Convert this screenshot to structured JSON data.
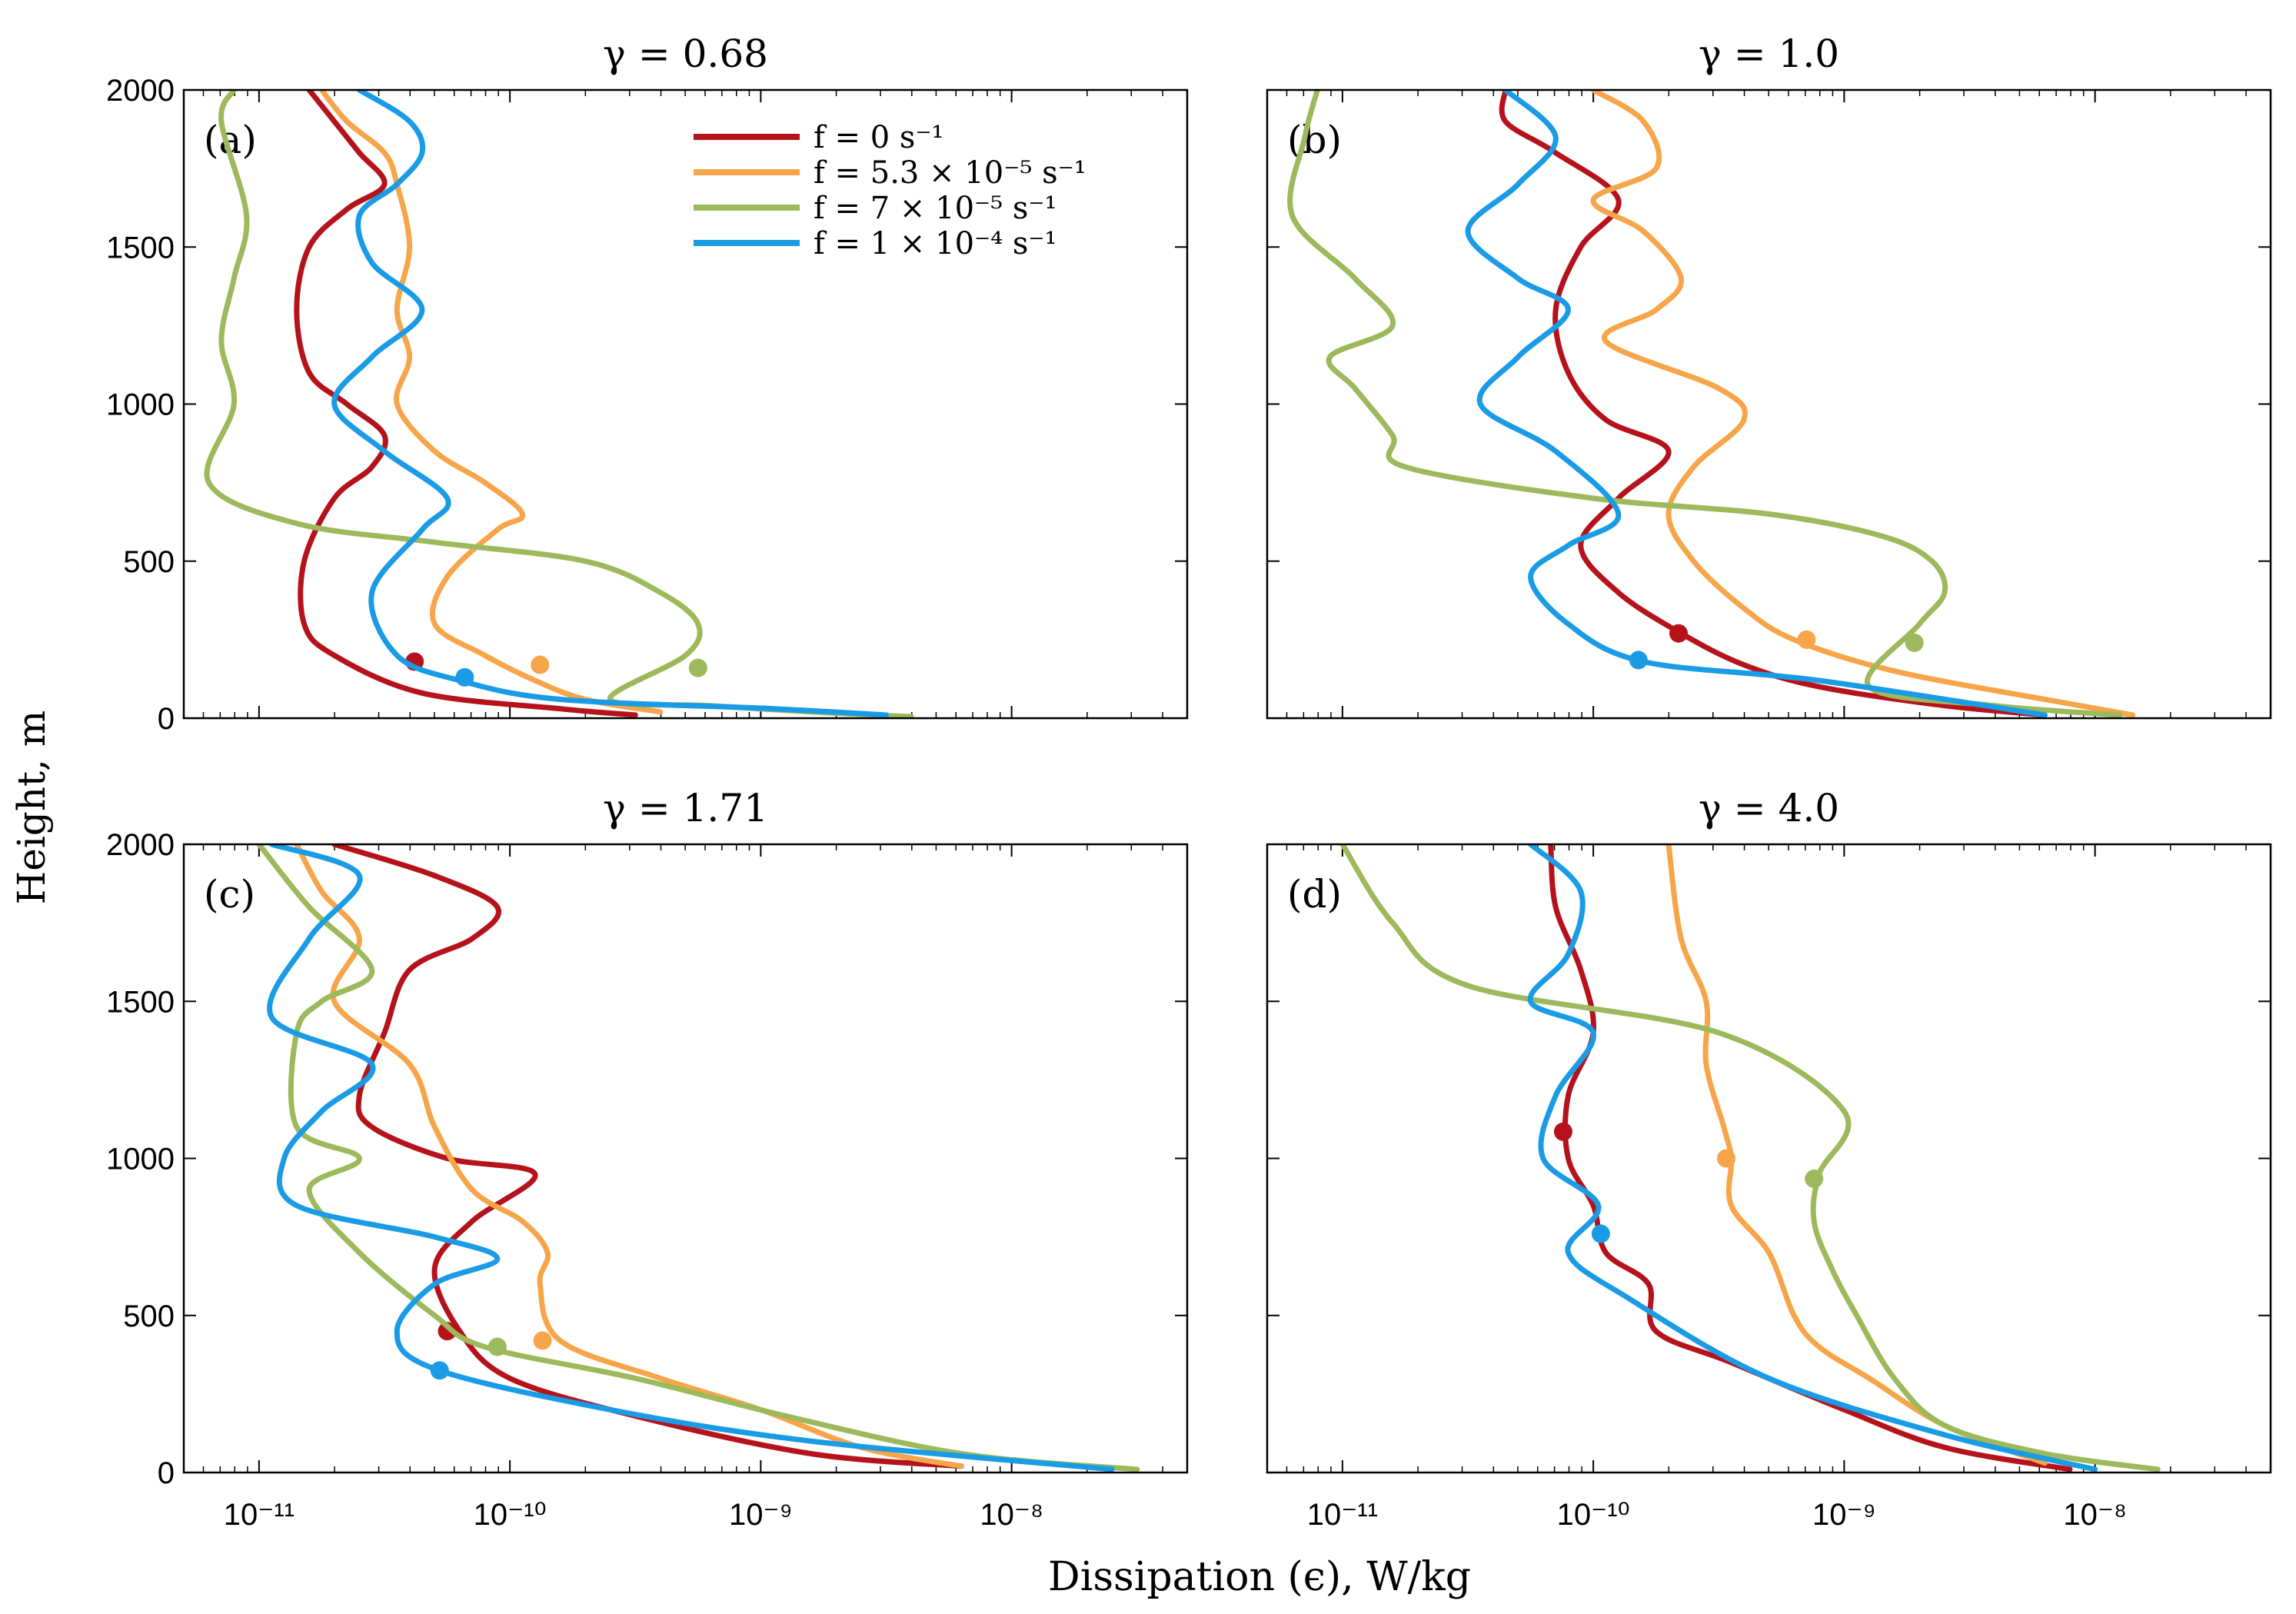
{
  "figure": {
    "ylabel": "Height, m",
    "xlabel": "Dissipation (ϵ), W/kg"
  },
  "legend": [
    {
      "label": "f = 0 s⁻¹",
      "color": "#b5121b"
    },
    {
      "label": "f = 5.3 × 10⁻⁵ s⁻¹",
      "color": "#f7a54a"
    },
    {
      "label": "f = 7 × 10⁻⁵ s⁻¹",
      "color": "#9cb95b"
    },
    {
      "label": "f = 1 × 10⁻⁴ s⁻¹",
      "color": "#1a9be6"
    }
  ],
  "chart_data": [
    {
      "type": "line",
      "panel": "(a)",
      "title": "γ = 0.68",
      "xscale": "log",
      "xlim_exp": [
        -11.3,
        -7.3
      ],
      "ylim": [
        0,
        2000
      ],
      "xticks": [
        "10⁻¹¹",
        "10⁻¹⁰",
        "10⁻⁹",
        "10⁻⁸"
      ],
      "yticks": [
        "0",
        "500",
        "1000",
        "1500",
        "2000"
      ],
      "series": [
        {
          "name": "f = 0 s⁻¹",
          "color": "#b5121b",
          "x_exp": [
            -10.8,
            -10.7,
            -10.6,
            -10.5,
            -10.65,
            -10.8,
            -10.85,
            -10.8,
            -10.65,
            -10.5,
            -10.55,
            -10.7,
            -10.82,
            -10.82,
            -10.7,
            -10.35,
            -9.8,
            -9.5
          ],
          "y": [
            2000,
            1900,
            1800,
            1700,
            1620,
            1500,
            1300,
            1100,
            1000,
            900,
            800,
            700,
            500,
            300,
            200,
            80,
            30,
            10
          ],
          "marker": {
            "x_exp": -10.38,
            "y": 180
          }
        },
        {
          "name": "f = 5.3 × 10⁻⁵ s⁻¹",
          "color": "#f7a54a",
          "x_exp": [
            -10.75,
            -10.65,
            -10.5,
            -10.45,
            -10.4,
            -10.45,
            -10.4,
            -10.45,
            -10.3,
            -10.1,
            -9.95,
            -10.05,
            -10.25,
            -10.3,
            -10.1,
            -9.9,
            -9.7,
            -9.4
          ],
          "y": [
            2000,
            1900,
            1800,
            1700,
            1500,
            1300,
            1150,
            1000,
            850,
            750,
            650,
            600,
            450,
            300,
            200,
            120,
            60,
            20
          ],
          "marker": {
            "x_exp": -9.88,
            "y": 170
          }
        },
        {
          "name": "f = 7 × 10⁻⁵ s⁻¹",
          "color": "#9cb95b",
          "x_exp": [
            -11.1,
            -11.15,
            -11.05,
            -11.1,
            -11.15,
            -11.1,
            -11.2,
            -10.85,
            -10.3,
            -9.7,
            -9.4,
            -9.25,
            -9.3,
            -9.6,
            -9.2,
            -8.8,
            -8.4
          ],
          "y": [
            2000,
            1900,
            1600,
            1400,
            1200,
            1000,
            750,
            620,
            560,
            500,
            400,
            300,
            200,
            60,
            40,
            20,
            5
          ],
          "marker": {
            "x_exp": -9.25,
            "y": 160
          }
        },
        {
          "name": "f = 1 × 10⁻⁴ s⁻¹",
          "color": "#1a9be6",
          "x_exp": [
            -10.6,
            -10.4,
            -10.35,
            -10.45,
            -10.6,
            -10.55,
            -10.35,
            -10.55,
            -10.7,
            -10.5,
            -10.25,
            -10.35,
            -10.55,
            -10.45,
            -10.2,
            -9.8,
            -8.95,
            -8.5
          ],
          "y": [
            2000,
            1900,
            1800,
            1700,
            1600,
            1450,
            1300,
            1150,
            1000,
            850,
            700,
            600,
            400,
            200,
            120,
            60,
            30,
            10
          ],
          "marker": {
            "x_exp": -10.18,
            "y": 130
          }
        }
      ]
    },
    {
      "type": "line",
      "panel": "(b)",
      "title": "γ = 1.0",
      "xscale": "log",
      "xlim_exp": [
        -11.3,
        -7.3
      ],
      "ylim": [
        0,
        2000
      ],
      "xticks": [
        "10⁻¹¹",
        "10⁻¹⁰",
        "10⁻⁹",
        "10⁻⁸"
      ],
      "yticks": [
        "0",
        "500",
        "1000",
        "1500",
        "2000"
      ],
      "series": [
        {
          "name": "f = 0 s⁻¹",
          "color": "#b5121b",
          "x_exp": [
            -10.35,
            -10.35,
            -10.15,
            -9.9,
            -10.05,
            -10.15,
            -10.1,
            -9.95,
            -9.7,
            -9.9,
            -10.05,
            -9.9,
            -9.65,
            -9.4,
            -9.1,
            -8.6,
            -8.2
          ],
          "y": [
            2000,
            1900,
            1800,
            1650,
            1500,
            1300,
            1100,
            950,
            850,
            700,
            550,
            400,
            270,
            170,
            100,
            40,
            10
          ],
          "marker": {
            "x_exp": -9.66,
            "y": 270
          }
        },
        {
          "name": "f = 5.3 × 10⁻⁵ s⁻¹",
          "color": "#f7a54a",
          "x_exp": [
            -10.0,
            -9.8,
            -9.75,
            -10.0,
            -9.8,
            -9.65,
            -9.75,
            -9.95,
            -9.5,
            -9.4,
            -9.6,
            -9.7,
            -9.6,
            -9.4,
            -9.2,
            -8.8,
            -8.2,
            -7.85
          ],
          "y": [
            2000,
            1900,
            1750,
            1650,
            1550,
            1400,
            1300,
            1200,
            1050,
            950,
            800,
            650,
            500,
            350,
            250,
            150,
            60,
            10
          ],
          "marker": {
            "x_exp": -9.15,
            "y": 250
          }
        },
        {
          "name": "f = 7 × 10⁻⁵ s⁻¹",
          "color": "#9cb95b",
          "x_exp": [
            -11.1,
            -11.15,
            -11.2,
            -10.95,
            -10.8,
            -11.05,
            -10.95,
            -10.8,
            -10.75,
            -10.0,
            -9.3,
            -8.85,
            -8.65,
            -8.6,
            -8.7,
            -8.9,
            -8.4,
            -7.9
          ],
          "y": [
            2000,
            1850,
            1600,
            1400,
            1250,
            1150,
            1050,
            900,
            800,
            700,
            650,
            580,
            500,
            400,
            300,
            100,
            40,
            10
          ],
          "marker": {
            "x_exp": -8.72,
            "y": 240
          }
        },
        {
          "name": "f = 1 × 10⁻⁴ s⁻¹",
          "color": "#1a9be6",
          "x_exp": [
            -10.35,
            -10.15,
            -10.3,
            -10.5,
            -10.3,
            -10.1,
            -10.3,
            -10.45,
            -10.15,
            -9.9,
            -10.1,
            -10.25,
            -10.1,
            -9.8,
            -9.1,
            -8.2
          ],
          "y": [
            2000,
            1850,
            1700,
            1550,
            1400,
            1300,
            1150,
            1000,
            850,
            650,
            550,
            450,
            300,
            180,
            120,
            10
          ],
          "marker": {
            "x_exp": -9.82,
            "y": 185
          }
        }
      ]
    },
    {
      "type": "line",
      "panel": "(c)",
      "title": "γ = 1.71",
      "xscale": "log",
      "xlim_exp": [
        -11.3,
        -7.3
      ],
      "ylim": [
        0,
        2000
      ],
      "xticks": [
        "10⁻¹¹",
        "10⁻¹⁰",
        "10⁻⁹",
        "10⁻⁸"
      ],
      "yticks": [
        "0",
        "500",
        "1000",
        "1500",
        "2000"
      ],
      "series": [
        {
          "name": "f = 0 s⁻¹",
          "color": "#b5121b",
          "x_exp": [
            -10.7,
            -10.3,
            -10.05,
            -10.15,
            -10.4,
            -10.5,
            -10.6,
            -10.55,
            -10.25,
            -9.9,
            -10.15,
            -10.3,
            -10.2,
            -10.0,
            -9.5,
            -8.8,
            -8.2
          ],
          "y": [
            2000,
            1900,
            1800,
            1700,
            1600,
            1400,
            1200,
            1100,
            1000,
            950,
            800,
            650,
            450,
            300,
            180,
            60,
            20
          ],
          "marker": {
            "x_exp": -10.25,
            "y": 450
          }
        },
        {
          "name": "f = 5.3 × 10⁻⁵ s⁻¹",
          "color": "#f7a54a",
          "x_exp": [
            -10.85,
            -10.75,
            -10.6,
            -10.7,
            -10.4,
            -10.3,
            -10.15,
            -9.95,
            -9.85,
            -9.88,
            -9.8,
            -9.4,
            -9.0,
            -8.6,
            -8.2
          ],
          "y": [
            2000,
            1850,
            1700,
            1500,
            1300,
            1100,
            900,
            800,
            700,
            600,
            420,
            300,
            200,
            80,
            20
          ],
          "marker": {
            "x_exp": -9.87,
            "y": 420
          }
        },
        {
          "name": "f = 7 × 10⁻⁵ s⁻¹",
          "color": "#9cb95b",
          "x_exp": [
            -11.0,
            -10.8,
            -10.55,
            -10.75,
            -10.85,
            -10.85,
            -10.6,
            -10.8,
            -10.6,
            -10.3,
            -10.1,
            -9.5,
            -8.9,
            -8.2,
            -7.5
          ],
          "y": [
            2000,
            1800,
            1600,
            1500,
            1400,
            1100,
            1000,
            900,
            700,
            500,
            400,
            300,
            180,
            60,
            10
          ],
          "marker": {
            "x_exp": -10.05,
            "y": 400
          }
        },
        {
          "name": "f = 1 × 10⁻⁴ s⁻¹",
          "color": "#1a9be6",
          "x_exp": [
            -10.95,
            -10.6,
            -10.8,
            -10.95,
            -10.55,
            -10.75,
            -10.9,
            -10.85,
            -10.3,
            -10.05,
            -10.3,
            -10.45,
            -10.3,
            -9.6,
            -8.8,
            -7.6
          ],
          "y": [
            2000,
            1900,
            1700,
            1450,
            1300,
            1150,
            1000,
            850,
            750,
            680,
            600,
            450,
            330,
            200,
            100,
            10
          ],
          "marker": {
            "x_exp": -10.28,
            "y": 325
          }
        }
      ]
    },
    {
      "type": "line",
      "panel": "(d)",
      "title": "γ = 4.0",
      "xscale": "log",
      "xlim_exp": [
        -11.3,
        -7.3
      ],
      "ylim": [
        0,
        2000
      ],
      "xticks": [
        "10⁻¹¹",
        "10⁻¹⁰",
        "10⁻⁹",
        "10⁻⁸"
      ],
      "yticks": [
        "0",
        "500",
        "1000",
        "1500",
        "2000"
      ],
      "series": [
        {
          "name": "f = 0 s⁻¹",
          "color": "#b5121b",
          "x_exp": [
            -10.17,
            -10.15,
            -10.05,
            -10.0,
            -10.1,
            -10.1,
            -10.0,
            -9.95,
            -9.78,
            -9.75,
            -9.45,
            -9.0,
            -8.6,
            -8.1
          ],
          "y": [
            2000,
            1800,
            1600,
            1400,
            1200,
            1000,
            850,
            700,
            600,
            450,
            350,
            200,
            80,
            10
          ],
          "marker": {
            "x_exp": -10.12,
            "y": 1085
          }
        },
        {
          "name": "f = 5.3 × 10⁻⁵ s⁻¹",
          "color": "#f7a54a",
          "x_exp": [
            -9.7,
            -9.65,
            -9.55,
            -9.55,
            -9.48,
            -9.45,
            -9.45,
            -9.3,
            -9.2,
            -9.1,
            -8.9,
            -8.6,
            -8.2
          ],
          "y": [
            2000,
            1700,
            1500,
            1300,
            1100,
            1000,
            850,
            700,
            500,
            400,
            300,
            150,
            30
          ],
          "marker": {
            "x_exp": -9.47,
            "y": 1000
          }
        },
        {
          "name": "f = 7 × 10⁻⁵ s⁻¹",
          "color": "#9cb95b",
          "x_exp": [
            -11.0,
            -10.8,
            -10.5,
            -9.5,
            -9.0,
            -9.1,
            -9.12,
            -9.05,
            -8.95,
            -8.8,
            -8.6,
            -8.2,
            -7.75
          ],
          "y": [
            2000,
            1750,
            1550,
            1400,
            1150,
            950,
            800,
            650,
            500,
            300,
            150,
            60,
            10
          ],
          "marker": {
            "x_exp": -9.12,
            "y": 935
          }
        },
        {
          "name": "f = 1 × 10⁻⁴ s⁻¹",
          "color": "#1a9be6",
          "x_exp": [
            -10.25,
            -10.05,
            -10.1,
            -10.25,
            -10.0,
            -10.15,
            -10.2,
            -9.98,
            -10.1,
            -9.85,
            -9.3,
            -8.6,
            -8.0
          ],
          "y": [
            2000,
            1850,
            1650,
            1500,
            1400,
            1200,
            1000,
            850,
            700,
            550,
            300,
            120,
            10
          ],
          "marker": {
            "x_exp": -9.97,
            "y": 760
          }
        }
      ]
    }
  ]
}
